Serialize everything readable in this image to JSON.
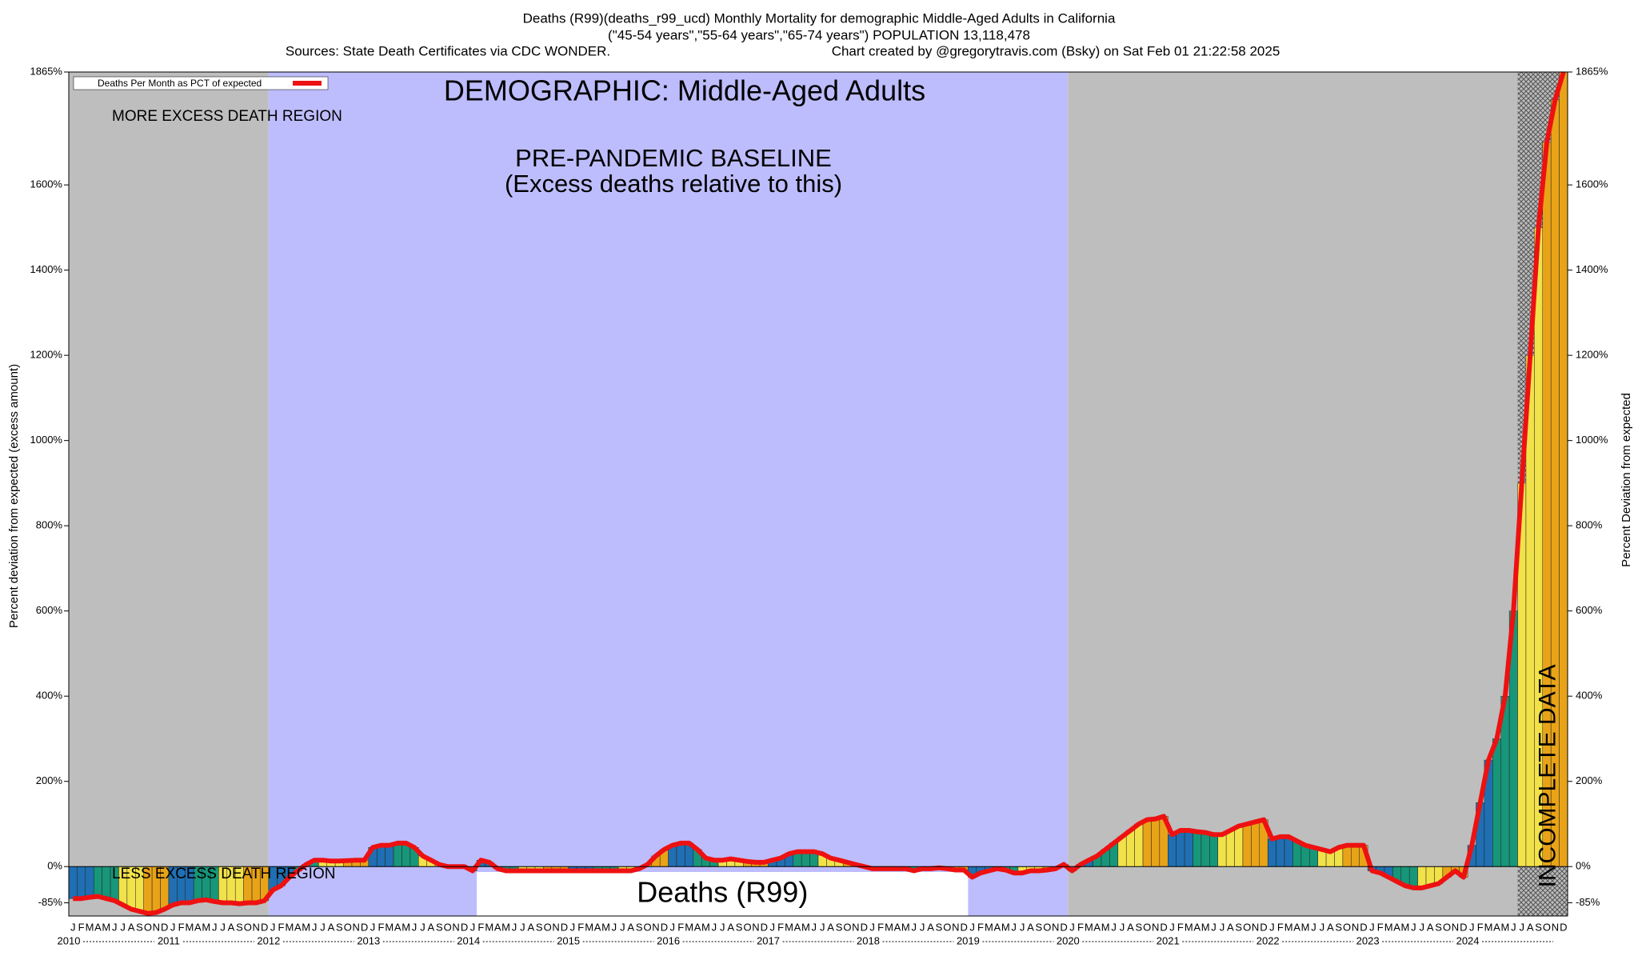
{
  "chart_data": {
    "type": "bar",
    "title": "Deaths (R99)(deaths_r99_ucd) Monthly Mortality for demographic Middle-Aged Adults in California",
    "subtitle": "(\"45-54 years\",\"55-64 years\",\"65-74 years\") POPULATION 13,118,478",
    "source": "Sources: State Death Certificates via CDC WONDER.",
    "credit": "Chart created by @gregorytravis.com (Bsky) on Sat Feb 01 21:22:58 2025",
    "y_label": "Percent deviation from expected (excess amount)",
    "y2_label": "Percent Deviation from expected",
    "annotations": {
      "demographic": "DEMOGRAPHIC: Middle-Aged Adults",
      "more": "MORE EXCESS DEATH REGION",
      "less": "LESS EXCESS DEATH REGION",
      "baseline": "PRE-PANDEMIC BASELINE",
      "baseline_note": "(Excess deaths relative to this)",
      "cause": "Deaths (R99)",
      "incomplete": "INCOMPLETE DATA"
    },
    "months": [
      "J",
      "F",
      "M",
      "A",
      "M",
      "J",
      "J",
      "A",
      "S",
      "O",
      "N",
      "D"
    ],
    "years": [
      "2010",
      "2011",
      "2012",
      "2013",
      "2014",
      "2015",
      "2016",
      "2017",
      "2018",
      "2019",
      "2020",
      "2021",
      "2022",
      "2023",
      "2024"
    ],
    "bar_colors": [
      "#1f6fb2",
      "#179679",
      "#f2e24a",
      "#e8a318"
    ],
    "series": [
      {
        "name": "Deaths Per Month as PCT of expected",
        "color": "#ee1111",
        "values": [
          -75,
          -75,
          -72,
          -70,
          -75,
          -80,
          -90,
          -100,
          -105,
          -110,
          -108,
          -100,
          -90,
          -85,
          -85,
          -80,
          -78,
          -82,
          -85,
          -85,
          -87,
          -85,
          -85,
          -80,
          -55,
          -45,
          -25,
          -10,
          5,
          15,
          15,
          13,
          13,
          14,
          15,
          15,
          45,
          50,
          50,
          55,
          55,
          45,
          25,
          15,
          5,
          0,
          0,
          0,
          -10,
          15,
          10,
          -5,
          -10,
          -10,
          -10,
          -10,
          -10,
          -10,
          -10,
          -10,
          -10,
          -10,
          -10,
          -10,
          -10,
          -10,
          -10,
          -10,
          -5,
          5,
          25,
          40,
          50,
          55,
          55,
          40,
          20,
          15,
          15,
          18,
          15,
          12,
          10,
          10,
          15,
          20,
          30,
          35,
          35,
          35,
          30,
          20,
          15,
          10,
          5,
          0,
          -5,
          -5,
          -5,
          -5,
          -5,
          -10,
          -5,
          -5,
          -3,
          -5,
          -8,
          -8,
          -25,
          -15,
          -10,
          -5,
          -8,
          -15,
          -15,
          -10,
          -10,
          -8,
          -5,
          5,
          -10,
          5,
          15,
          25,
          40,
          55,
          70,
          85,
          100,
          110,
          112,
          118,
          75,
          85,
          85,
          82,
          80,
          75,
          75,
          85,
          95,
          100,
          105,
          110,
          65,
          70,
          70,
          60,
          50,
          45,
          40,
          35,
          45,
          50,
          50,
          50,
          -10,
          -15,
          -25,
          -35,
          -45,
          -50,
          -50,
          -45,
          -40,
          -25,
          -10,
          -25,
          50,
          150,
          250,
          300,
          400,
          600,
          900,
          1200,
          1500,
          1700,
          1800,
          1865
        ]
      }
    ],
    "ylim": [
      -116,
      1865
    ],
    "yticks": [
      {
        "value": -85,
        "label": "-85%"
      },
      {
        "value": 0,
        "label": "0%"
      },
      {
        "value": 200,
        "label": "200%"
      },
      {
        "value": 400,
        "label": "400%"
      },
      {
        "value": 600,
        "label": "600%"
      },
      {
        "value": 800,
        "label": "800%"
      },
      {
        "value": 1000,
        "label": "1000%"
      },
      {
        "value": 1200,
        "label": "1200%"
      },
      {
        "value": 1400,
        "label": "1400%"
      },
      {
        "value": 1600,
        "label": "1600%"
      },
      {
        "value": 1865,
        "label": "1865%"
      }
    ]
  }
}
